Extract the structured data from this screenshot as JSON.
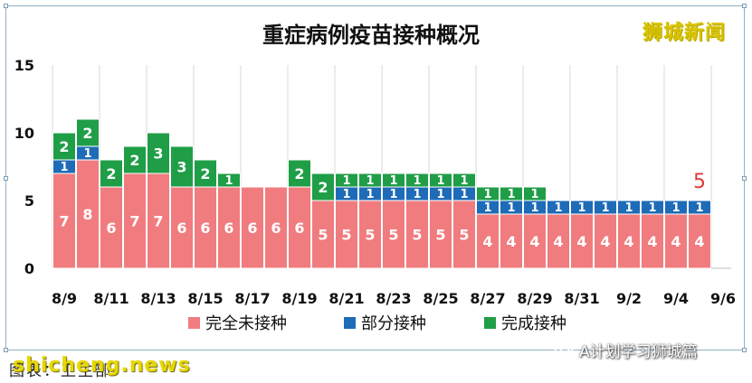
{
  "watermark_brand": "狮城新闻",
  "watermark_site": "shicheng.news",
  "caption": "图表：卫生部",
  "wechat_account": "A计划学习狮城篇",
  "colors": {
    "unvaccinated": "#f07c7f",
    "partial": "#1e6bb8",
    "full": "#1f9e47",
    "callout": "#e03a3a"
  },
  "chart_data": {
    "type": "bar",
    "stacked": true,
    "title": "重症病例疫苗接种概况",
    "categories": [
      "8/9",
      "8/10",
      "8/11",
      "8/12",
      "8/13",
      "8/14",
      "8/15",
      "8/16",
      "8/17",
      "8/18",
      "8/19",
      "8/20",
      "8/21",
      "8/22",
      "8/23",
      "8/24",
      "8/25",
      "8/26",
      "8/27",
      "8/28",
      "8/29",
      "8/30",
      "8/31",
      "9/1",
      "9/2",
      "9/3",
      "9/4",
      "9/5"
    ],
    "x_tick_labels": [
      "8/9",
      "8/11",
      "8/13",
      "8/15",
      "8/17",
      "8/19",
      "8/21",
      "8/23",
      "8/25",
      "8/27",
      "8/29",
      "8/31",
      "9/2",
      "9/4",
      "9/6"
    ],
    "y_ticks": [
      0,
      5,
      10,
      15
    ],
    "ylim": [
      0,
      15
    ],
    "grid": "vertical",
    "legend_position": "bottom",
    "series": [
      {
        "name": "完全未接种",
        "values": [
          7,
          8,
          6,
          7,
          7,
          6,
          6,
          6,
          6,
          6,
          6,
          5,
          5,
          5,
          5,
          5,
          5,
          5,
          4,
          4,
          4,
          4,
          4,
          4,
          4,
          4,
          4,
          4
        ]
      },
      {
        "name": "部分接种",
        "values": [
          1,
          1,
          0,
          0,
          0,
          0,
          0,
          0,
          0,
          0,
          0,
          0,
          1,
          1,
          1,
          1,
          1,
          1,
          1,
          1,
          1,
          1,
          1,
          1,
          1,
          1,
          1,
          1
        ]
      },
      {
        "name": "完成接种",
        "values": [
          2,
          2,
          2,
          2,
          3,
          3,
          2,
          1,
          0,
          0,
          2,
          2,
          1,
          1,
          1,
          1,
          1,
          1,
          1,
          1,
          1,
          0,
          0,
          0,
          0,
          0,
          0,
          0
        ]
      }
    ],
    "annotations": [
      {
        "category": "9/5",
        "text": "5"
      }
    ]
  }
}
